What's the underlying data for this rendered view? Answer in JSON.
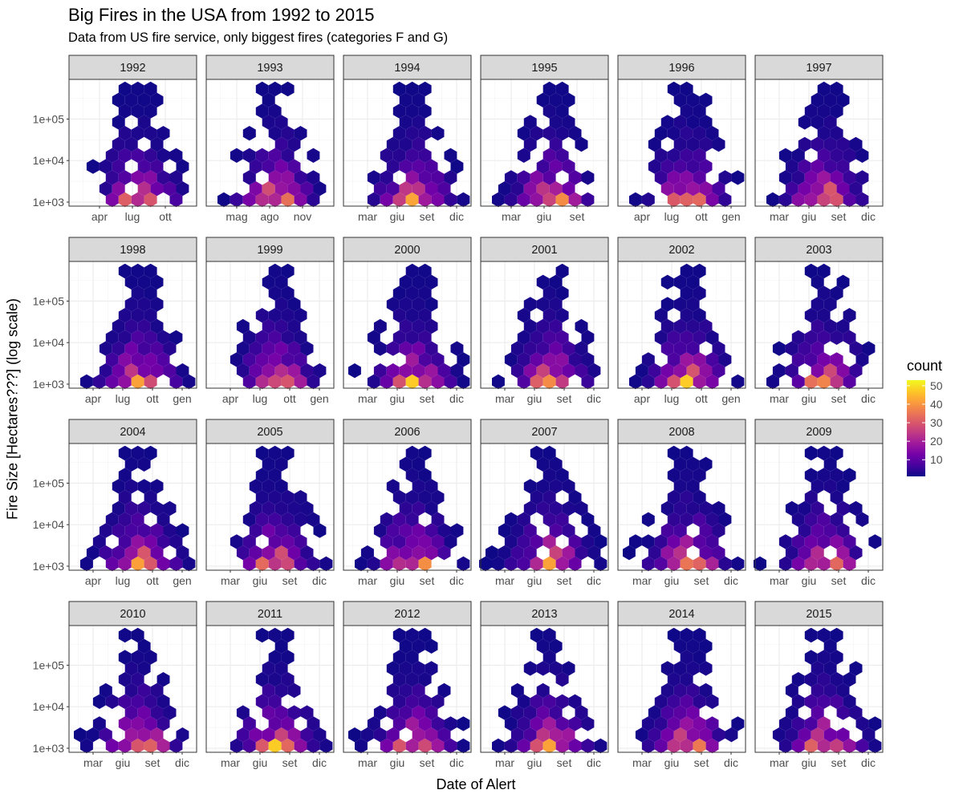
{
  "title": "Big Fires in the USA from 1992 to 2015",
  "subtitle": "Data from US fire service, only biggest fires (categories F and G)",
  "chart_data": {
    "type": "heatmap",
    "geom": "hexbin",
    "facet_by": "year",
    "facets": [
      {
        "label": "1992",
        "x_ticks": [
          "apr",
          "lug",
          "ott"
        ]
      },
      {
        "label": "1993",
        "x_ticks": [
          "mag",
          "ago",
          "nov"
        ]
      },
      {
        "label": "1994",
        "x_ticks": [
          "mar",
          "giu",
          "set",
          "dic"
        ]
      },
      {
        "label": "1995",
        "x_ticks": [
          "mar",
          "giu",
          "set"
        ]
      },
      {
        "label": "1996",
        "x_ticks": [
          "apr",
          "lug",
          "ott",
          "gen"
        ]
      },
      {
        "label": "1997",
        "x_ticks": [
          "mar",
          "giu",
          "set",
          "dic"
        ]
      },
      {
        "label": "1998",
        "x_ticks": [
          "apr",
          "lug",
          "ott",
          "gen"
        ]
      },
      {
        "label": "1999",
        "x_ticks": [
          "apr",
          "lug",
          "ott",
          "gen"
        ]
      },
      {
        "label": "2000",
        "x_ticks": [
          "mar",
          "giu",
          "set",
          "dic"
        ]
      },
      {
        "label": "2001",
        "x_ticks": [
          "mar",
          "giu",
          "set",
          "dic"
        ]
      },
      {
        "label": "2002",
        "x_ticks": [
          "apr",
          "lug",
          "ott",
          "gen"
        ]
      },
      {
        "label": "2003",
        "x_ticks": [
          "mar",
          "giu",
          "set",
          "dic"
        ]
      },
      {
        "label": "2004",
        "x_ticks": [
          "apr",
          "lug",
          "ott",
          "gen"
        ]
      },
      {
        "label": "2005",
        "x_ticks": [
          "mar",
          "giu",
          "set",
          "dic"
        ]
      },
      {
        "label": "2006",
        "x_ticks": [
          "mar",
          "giu",
          "set",
          "dic"
        ]
      },
      {
        "label": "2007",
        "x_ticks": [
          "mar",
          "giu",
          "set",
          "dic"
        ]
      },
      {
        "label": "2008",
        "x_ticks": [
          "mar",
          "giu",
          "set",
          "dic"
        ]
      },
      {
        "label": "2009",
        "x_ticks": [
          "mar",
          "giu",
          "set",
          "dic"
        ]
      },
      {
        "label": "2010",
        "x_ticks": [
          "mar",
          "giu",
          "set",
          "dic"
        ]
      },
      {
        "label": "2011",
        "x_ticks": [
          "mar",
          "giu",
          "set",
          "dic"
        ]
      },
      {
        "label": "2012",
        "x_ticks": [
          "mar",
          "giu",
          "set",
          "dic"
        ]
      },
      {
        "label": "2013",
        "x_ticks": [
          "mar",
          "giu",
          "set",
          "dic"
        ]
      },
      {
        "label": "2014",
        "x_ticks": [
          "mar",
          "giu",
          "set",
          "dic"
        ]
      },
      {
        "label": "2015",
        "x_ticks": [
          "mar",
          "giu",
          "set",
          "dic"
        ]
      }
    ],
    "y_ticks": [
      "1e+03",
      "1e+04",
      "1e+05"
    ],
    "y_tick_values": [
      1000,
      10000,
      100000
    ],
    "y_scale": "log10",
    "ylim": [
      800,
      900000
    ],
    "xlabel": "Date of Alert",
    "ylabel": "Fire Size [Hectares???] (log scale)",
    "legend": {
      "title": "count",
      "ticks": [
        10,
        20,
        30,
        40,
        50
      ],
      "range": [
        1,
        53
      ],
      "placement": "right",
      "palette": "plasma",
      "colors": [
        "#0d0887",
        "#46039f",
        "#7201a8",
        "#9c179e",
        "#bd3786",
        "#d8576b",
        "#ed7953",
        "#fb9f3a",
        "#fdca26",
        "#f0f921"
      ]
    },
    "grid": true
  }
}
